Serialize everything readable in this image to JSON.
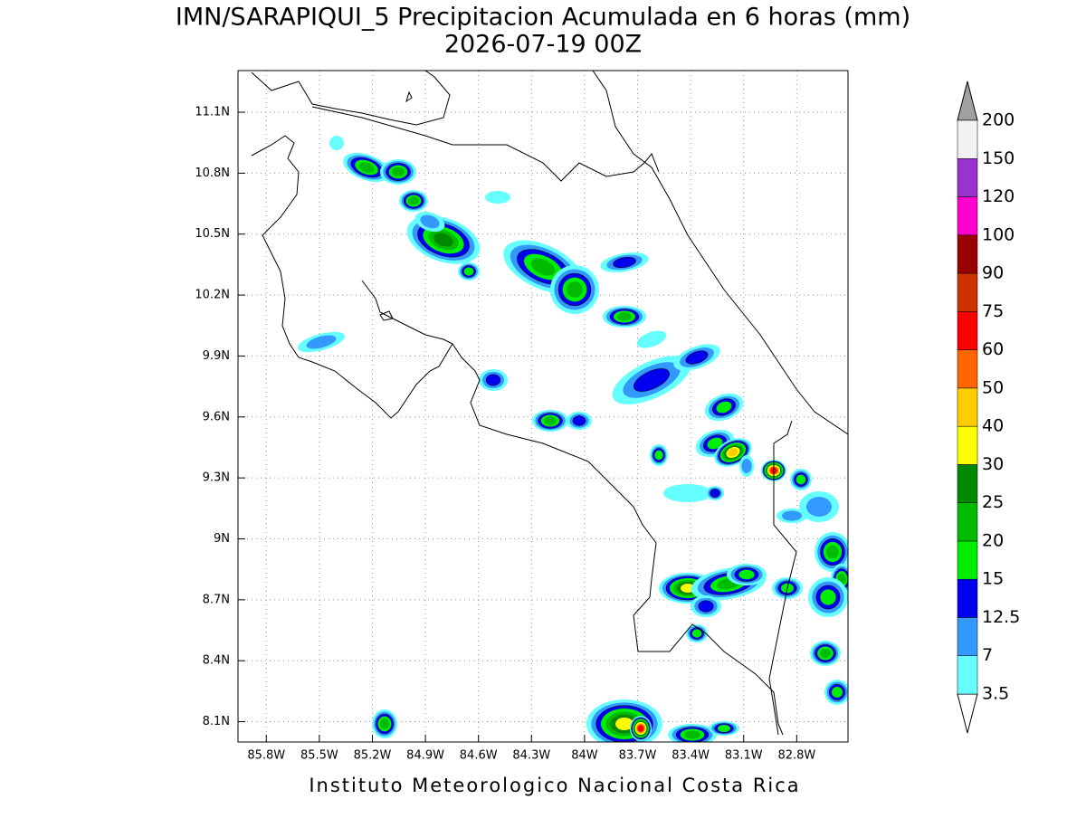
{
  "title": [
    "IMN/SARAPIQUI_5 Precipitacion Acumulada en 6 horas (mm)",
    "2026-07-19 00Z"
  ],
  "lonlim": [
    -85.96,
    -82.51
  ],
  "latlim": [
    8.0,
    11.305
  ],
  "lon_ticks": [
    {
      "value": -85.8,
      "label": "85.8W"
    },
    {
      "value": -85.5,
      "label": "85.5W"
    },
    {
      "value": -85.2,
      "label": "85.2W"
    },
    {
      "value": -84.9,
      "label": "84.9W"
    },
    {
      "value": -84.6,
      "label": "84.6W"
    },
    {
      "value": -84.3,
      "label": "84.3W"
    },
    {
      "value": -84.0,
      "label": "84W"
    },
    {
      "value": -83.7,
      "label": "83.7W"
    },
    {
      "value": -83.4,
      "label": "83.4W"
    },
    {
      "value": -83.1,
      "label": "83.1W"
    },
    {
      "value": -82.8,
      "label": "82.8W"
    }
  ],
  "lat_ticks": [
    {
      "value": 11.1,
      "label": "11.1N"
    },
    {
      "value": 10.8,
      "label": "10.8N"
    },
    {
      "value": 10.5,
      "label": "10.5N"
    },
    {
      "value": 10.2,
      "label": "10.2N"
    },
    {
      "value": 9.9,
      "label": "9.9N"
    },
    {
      "value": 9.6,
      "label": "9.6N"
    },
    {
      "value": 9.3,
      "label": "9.3N"
    },
    {
      "value": 9.0,
      "label": "9N"
    },
    {
      "value": 8.7,
      "label": "8.7N"
    },
    {
      "value": 8.4,
      "label": "8.4N"
    },
    {
      "value": 8.1,
      "label": "8.1N"
    }
  ],
  "colorbar": {
    "labels": [
      "3.5",
      "7",
      "12.5",
      "15",
      "20",
      "25",
      "30",
      "40",
      "50",
      "60",
      "75",
      "90",
      "100",
      "120",
      "150",
      "200"
    ],
    "colors": [
      "#66ffff",
      "#3399ff",
      "#0000ee",
      "#00ee00",
      "#00bb00",
      "#008800",
      "#ffff00",
      "#ffcc00",
      "#ff6600",
      "#ff0000",
      "#cc3300",
      "#990000",
      "#ff00cc",
      "#9933cc",
      "#f2f2f2"
    ]
  },
  "footer": "Instituto Meteorologico Nacional Costa Rica"
}
